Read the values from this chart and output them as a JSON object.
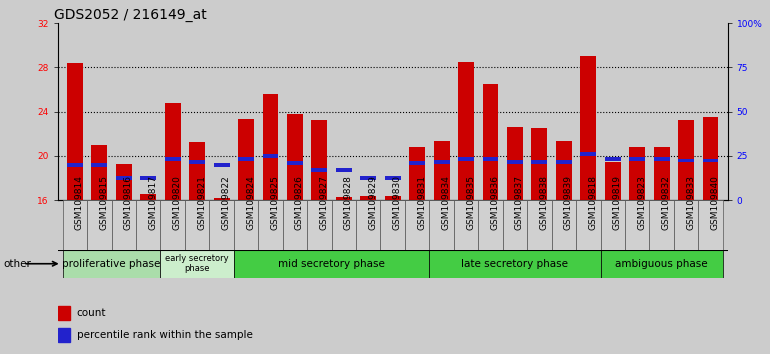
{
  "title": "GDS2052 / 216149_at",
  "samples": [
    "GSM109814",
    "GSM109815",
    "GSM109816",
    "GSM109817",
    "GSM109820",
    "GSM109821",
    "GSM109822",
    "GSM109824",
    "GSM109825",
    "GSM109826",
    "GSM109827",
    "GSM109828",
    "GSM109829",
    "GSM109830",
    "GSM109831",
    "GSM109834",
    "GSM109835",
    "GSM109836",
    "GSM109837",
    "GSM109838",
    "GSM109839",
    "GSM109818",
    "GSM109819",
    "GSM109823",
    "GSM109832",
    "GSM109833",
    "GSM109840"
  ],
  "count_values": [
    28.4,
    21.0,
    19.3,
    16.5,
    24.8,
    21.2,
    16.2,
    23.3,
    25.6,
    23.8,
    23.2,
    16.3,
    16.4,
    16.4,
    20.8,
    21.3,
    28.5,
    26.5,
    22.6,
    22.5,
    21.3,
    29.0,
    19.4,
    20.8,
    20.8,
    23.2,
    23.5
  ],
  "percentile_values": [
    19.0,
    19.0,
    17.8,
    17.8,
    19.5,
    19.3,
    19.0,
    19.5,
    19.8,
    19.2,
    18.5,
    18.5,
    17.8,
    17.8,
    19.2,
    19.3,
    19.5,
    19.5,
    19.3,
    19.3,
    19.3,
    20.0,
    19.5,
    19.5,
    19.5,
    19.4,
    19.4
  ],
  "count_color": "#cc0000",
  "percentile_color": "#2222cc",
  "bar_width": 0.65,
  "ylim_left": [
    16,
    32
  ],
  "yticks_left": [
    16,
    20,
    24,
    28,
    32
  ],
  "yticks_right_vals": [
    16,
    20,
    24,
    28,
    32
  ],
  "ytick_labels_right": [
    "0",
    "25",
    "50",
    "75",
    "100%"
  ],
  "background_color": "#cccccc",
  "plot_bg_color": "#cccccc",
  "phases": [
    {
      "label": "proliferative phase",
      "start": 0,
      "end": 4,
      "color": "#aaddaa"
    },
    {
      "label": "early secretory\nphase",
      "start": 4,
      "end": 7,
      "color": "#cceecc"
    },
    {
      "label": "mid secretory phase",
      "start": 7,
      "end": 15,
      "color": "#44cc44"
    },
    {
      "label": "late secretory phase",
      "start": 15,
      "end": 22,
      "color": "#44cc44"
    },
    {
      "label": "ambiguous phase",
      "start": 22,
      "end": 27,
      "color": "#44cc44"
    }
  ],
  "other_label": "other",
  "legend_count": "count",
  "legend_percentile": "percentile rank within the sample",
  "title_fontsize": 10,
  "tick_fontsize": 6.5,
  "phase_fontsize": 7.5,
  "small_phase_fontsize": 6.0
}
